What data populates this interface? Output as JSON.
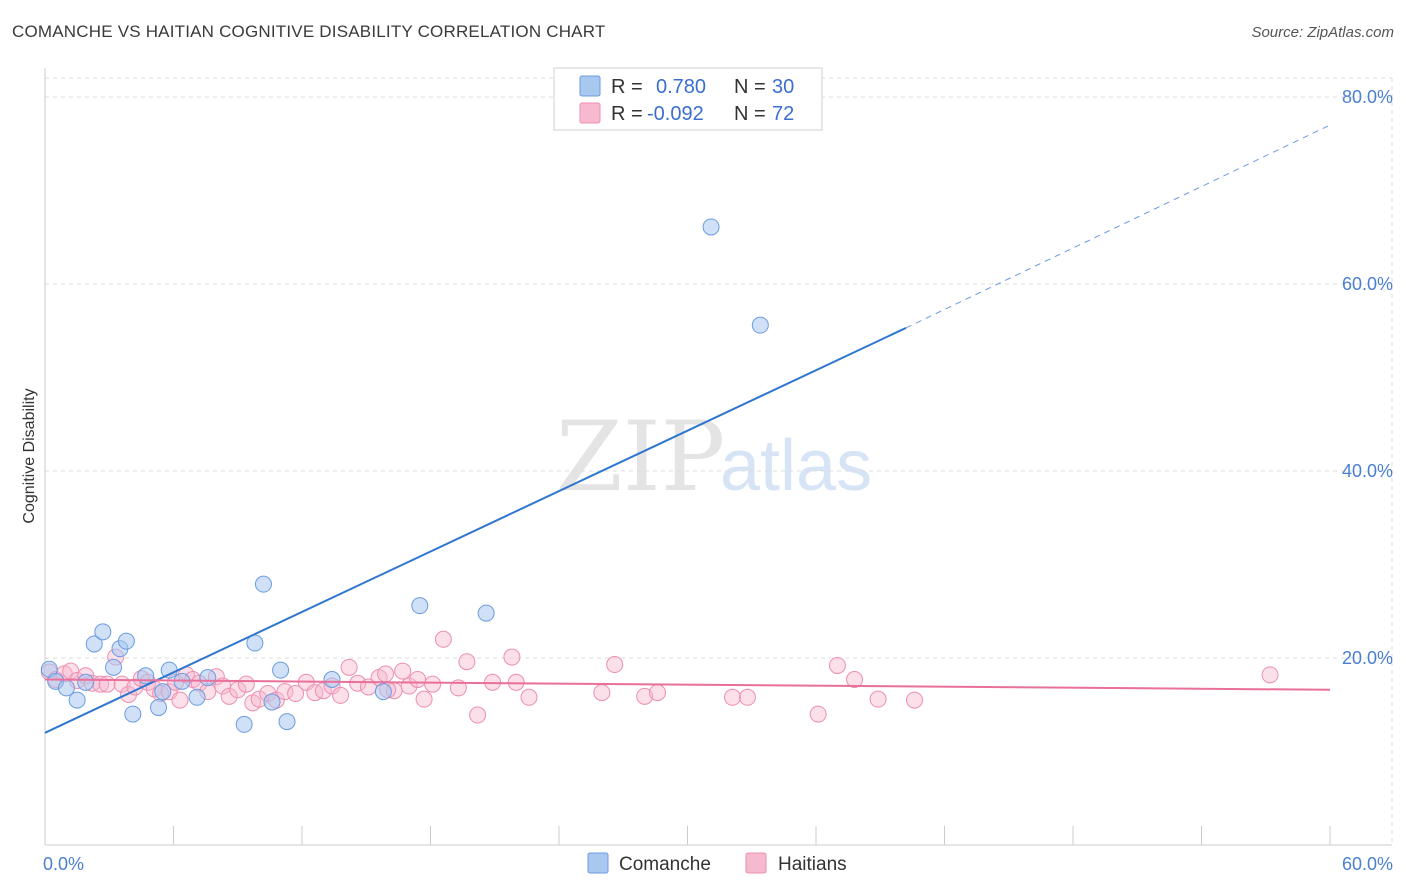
{
  "title": "COMANCHE VS HAITIAN COGNITIVE DISABILITY CORRELATION CHART",
  "source": "Source: ZipAtlas.com",
  "watermark": {
    "part1": "ZIP",
    "part2": "atlas"
  },
  "colors": {
    "comanche_fill": "#a9c8f0",
    "comanche_stroke": "#6b9be0",
    "comanche_line": "#2f76d0",
    "haitians_fill": "#f7b9cf",
    "haitians_stroke": "#ec8fb0",
    "haitians_line": "#e8709a",
    "grid": "#dddddd",
    "tick_text": "#4a7fd0"
  },
  "legend": {
    "rows": [
      {
        "r_label": "R = ",
        "r_value": "0.780",
        "n_label": "N = ",
        "n_value": "30"
      },
      {
        "r_label": "R = ",
        "r_value": "-0.092",
        "n_label": "N = ",
        "n_value": "72"
      }
    ]
  },
  "bottom_legend": [
    "Comanche",
    "Haitians"
  ],
  "chart_data": {
    "type": "scatter",
    "title": "COMANCHE VS HAITIAN COGNITIVE DISABILITY CORRELATION CHART",
    "xlabel": "",
    "ylabel": "Cognitive Disability",
    "xlim": [
      0,
      60
    ],
    "ylim": [
      0,
      82
    ],
    "x_tick_labels": [
      "0.0%",
      "60.0%"
    ],
    "y_ticks": [
      20,
      40,
      60,
      80
    ],
    "y_tick_labels": [
      "20.0%",
      "40.0%",
      "60.0%",
      "80.0%"
    ],
    "grid": true,
    "legend_position": "top-center",
    "series": [
      {
        "name": "Comanche",
        "R": 0.78,
        "N": 30,
        "trend": {
          "x0": 0,
          "y0": 12.0,
          "x1": 40.2,
          "y1": 55.3,
          "dashed_to_x": 60,
          "dashed_to_y": 77.0
        },
        "points": [
          [
            0.2,
            18.8
          ],
          [
            0.5,
            17.5
          ],
          [
            1.0,
            16.8
          ],
          [
            1.5,
            15.5
          ],
          [
            1.9,
            17.4
          ],
          [
            2.3,
            21.5
          ],
          [
            2.7,
            22.8
          ],
          [
            3.2,
            19.0
          ],
          [
            3.5,
            21.0
          ],
          [
            3.8,
            21.8
          ],
          [
            4.1,
            14.0
          ],
          [
            4.7,
            18.1
          ],
          [
            5.3,
            14.7
          ],
          [
            5.5,
            16.4
          ],
          [
            5.8,
            18.7
          ],
          [
            6.4,
            17.5
          ],
          [
            7.1,
            15.8
          ],
          [
            7.6,
            17.9
          ],
          [
            9.3,
            12.9
          ],
          [
            9.8,
            21.6
          ],
          [
            10.2,
            27.9
          ],
          [
            10.6,
            15.3
          ],
          [
            11.0,
            18.7
          ],
          [
            11.3,
            13.2
          ],
          [
            13.4,
            17.7
          ],
          [
            15.8,
            16.4
          ],
          [
            17.5,
            25.6
          ],
          [
            20.6,
            24.8
          ],
          [
            31.1,
            66.1
          ],
          [
            33.4,
            55.6
          ]
        ]
      },
      {
        "name": "Haitians",
        "R": -0.092,
        "N": 72,
        "trend": {
          "x0": 0,
          "y0": 17.7,
          "x1": 60,
          "y1": 16.6
        },
        "points": [
          [
            0.2,
            18.5
          ],
          [
            0.5,
            17.7
          ],
          [
            0.9,
            18.3
          ],
          [
            1.2,
            18.6
          ],
          [
            1.5,
            17.6
          ],
          [
            1.9,
            18.1
          ],
          [
            2.2,
            17.3
          ],
          [
            2.6,
            17.2
          ],
          [
            2.9,
            17.2
          ],
          [
            3.3,
            20.1
          ],
          [
            3.6,
            17.2
          ],
          [
            3.9,
            16.1
          ],
          [
            4.2,
            16.9
          ],
          [
            4.5,
            17.8
          ],
          [
            4.8,
            17.4
          ],
          [
            5.1,
            16.7
          ],
          [
            5.4,
            16.2
          ],
          [
            5.8,
            16.4
          ],
          [
            6.1,
            17.4
          ],
          [
            6.3,
            15.5
          ],
          [
            6.6,
            18.2
          ],
          [
            6.9,
            17.7
          ],
          [
            7.2,
            17.3
          ],
          [
            7.6,
            16.4
          ],
          [
            8.0,
            18.0
          ],
          [
            8.3,
            17.0
          ],
          [
            8.6,
            15.9
          ],
          [
            9.0,
            16.6
          ],
          [
            9.4,
            17.2
          ],
          [
            9.7,
            15.2
          ],
          [
            10.0,
            15.6
          ],
          [
            10.4,
            16.2
          ],
          [
            10.8,
            15.5
          ],
          [
            11.2,
            16.4
          ],
          [
            11.7,
            16.2
          ],
          [
            12.2,
            17.4
          ],
          [
            12.6,
            16.3
          ],
          [
            13.0,
            16.5
          ],
          [
            13.4,
            17.0
          ],
          [
            13.8,
            16.0
          ],
          [
            14.2,
            19.0
          ],
          [
            14.6,
            17.3
          ],
          [
            15.1,
            16.9
          ],
          [
            15.6,
            17.9
          ],
          [
            15.9,
            18.3
          ],
          [
            16.3,
            16.5
          ],
          [
            16.7,
            18.6
          ],
          [
            17.0,
            17.0
          ],
          [
            17.4,
            17.7
          ],
          [
            17.7,
            15.6
          ],
          [
            18.1,
            17.2
          ],
          [
            18.6,
            22.0
          ],
          [
            19.3,
            16.8
          ],
          [
            19.7,
            19.6
          ],
          [
            20.2,
            13.9
          ],
          [
            20.9,
            17.4
          ],
          [
            21.8,
            20.1
          ],
          [
            22.0,
            17.4
          ],
          [
            22.6,
            15.8
          ],
          [
            26.0,
            16.3
          ],
          [
            26.6,
            19.3
          ],
          [
            28.0,
            15.9
          ],
          [
            28.6,
            16.3
          ],
          [
            32.1,
            15.8
          ],
          [
            32.8,
            15.8
          ],
          [
            36.1,
            14.0
          ],
          [
            37.0,
            19.2
          ],
          [
            37.8,
            17.7
          ],
          [
            38.9,
            15.6
          ],
          [
            40.6,
            15.5
          ],
          [
            57.2,
            18.2
          ],
          [
            16.0,
            16.6
          ]
        ]
      }
    ]
  }
}
